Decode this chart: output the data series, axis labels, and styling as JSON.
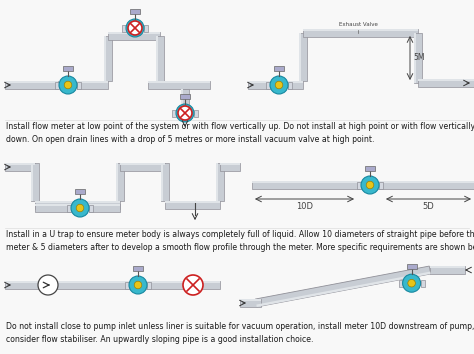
{
  "bg_color": "#f8f8f8",
  "pipe_color": "#c8cdd4",
  "pipe_edge": "#909098",
  "pipe_highlight": "#e0e4e8",
  "meter_teal": "#38b8cc",
  "meter_yellow": "#e8c418",
  "meter_edge": "#1888a0",
  "flange_color": "#d4d8e0",
  "bad_red": "#cc2020",
  "text_color": "#1a1a1a",
  "dim_color": "#444444",
  "text1": "Install flow meter at low point of the system or with flow vertically up. Do not install at high point or with flow vertically\ndown. On open drain lines with a drop of 5 metres or more install vacuum valve at high point.",
  "text2": "Install in a U trap to ensure meter body is always completely full of liquid. Allow 10 diameters of straight pipe before the\nmeter & 5 diameters after to develop a smooth flow profile through the meter. More specific requirements are shown belo’",
  "text3": "Do not install close to pump inlet unless liner is suitable for vacuum operation, install meter 10D downstream of pump, or\nconsider flow stabiliser. An upwardly sloping pipe is a good installation choice.",
  "label_10D": "10D",
  "label_5D": "5D",
  "label_exhaust": "Exhaust Valve",
  "label_5m": "5M"
}
